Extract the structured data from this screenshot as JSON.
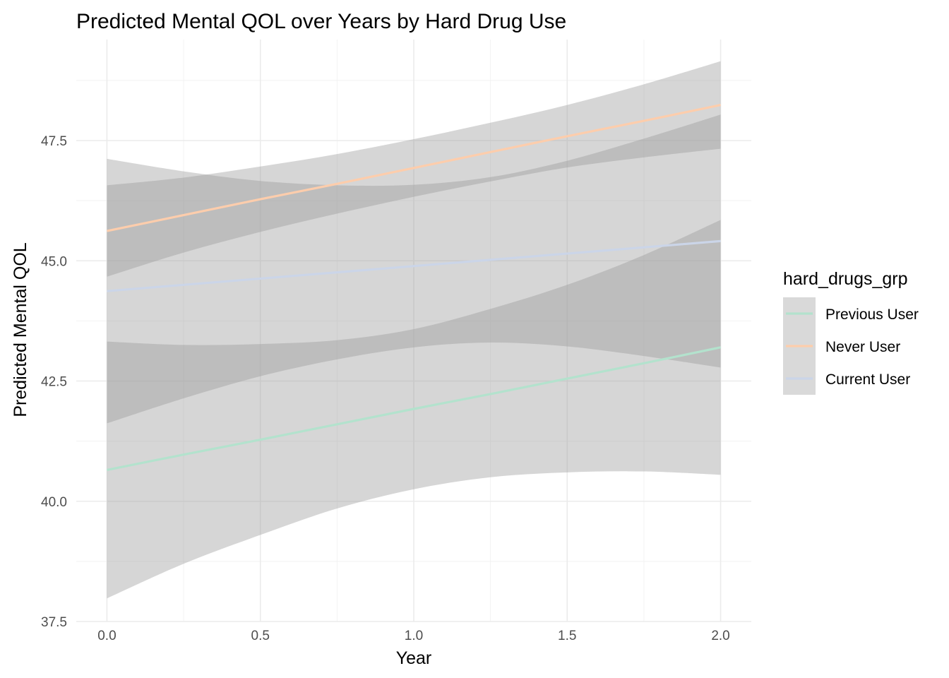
{
  "chart_data": {
    "type": "line",
    "title": "Predicted Mental QOL over Years by Hard Drug Use",
    "xlabel": "Year",
    "ylabel": "Predicted Mental QOL",
    "xlim": [
      -0.1,
      2.1
    ],
    "ylim": [
      37.5,
      49.6
    ],
    "x_ticks": [
      0.0,
      0.5,
      1.0,
      1.5,
      2.0
    ],
    "x_tick_labels": [
      "0.0",
      "0.5",
      "1.0",
      "1.5",
      "2.0"
    ],
    "y_ticks": [
      37.5,
      40.0,
      42.5,
      45.0,
      47.5
    ],
    "y_tick_labels": [
      "37.5",
      "40.0",
      "42.5",
      "45.0",
      "47.5"
    ],
    "grid": true,
    "ribbon_color": "#999999",
    "legend": {
      "title": "hard_drugs_grp",
      "placement": "right",
      "key_background": "#d9d9d9"
    },
    "series": [
      {
        "name": "Previous User",
        "color": "#b3e2cd",
        "x": [
          0.0,
          0.25,
          0.5,
          0.75,
          1.0,
          1.25,
          1.5,
          1.75,
          2.0
        ],
        "y": [
          40.65,
          40.97,
          41.28,
          41.6,
          41.92,
          42.23,
          42.55,
          42.87,
          43.2
        ],
        "lower": [
          37.98,
          38.7,
          39.3,
          39.85,
          40.25,
          40.5,
          40.6,
          40.62,
          40.55
        ],
        "upper": [
          43.32,
          43.25,
          43.27,
          43.35,
          43.58,
          44.0,
          44.5,
          45.12,
          45.85
        ]
      },
      {
        "name": "Never User",
        "color": "#fdcdac",
        "x": [
          0.0,
          0.25,
          0.5,
          0.75,
          1.0,
          1.25,
          1.5,
          1.75,
          2.0
        ],
        "y": [
          45.62,
          45.95,
          46.28,
          46.6,
          46.93,
          47.26,
          47.59,
          47.91,
          48.24
        ],
        "lower": [
          44.67,
          45.17,
          45.6,
          45.98,
          46.33,
          46.65,
          46.94,
          47.15,
          47.33
        ],
        "upper": [
          46.57,
          46.73,
          46.96,
          47.22,
          47.53,
          47.87,
          48.24,
          48.67,
          49.15
        ]
      },
      {
        "name": "Current User",
        "color": "#cbd5e8",
        "x": [
          0.0,
          0.25,
          0.5,
          0.75,
          1.0,
          1.25,
          1.5,
          1.75,
          2.0
        ],
        "y": [
          44.37,
          44.5,
          44.63,
          44.76,
          44.89,
          45.02,
          45.15,
          45.28,
          45.41
        ],
        "lower": [
          41.62,
          42.14,
          42.6,
          42.95,
          43.2,
          43.3,
          43.22,
          43.02,
          42.78
        ],
        "upper": [
          47.12,
          46.86,
          46.66,
          46.57,
          46.58,
          46.74,
          47.08,
          47.54,
          48.04
        ]
      }
    ]
  }
}
